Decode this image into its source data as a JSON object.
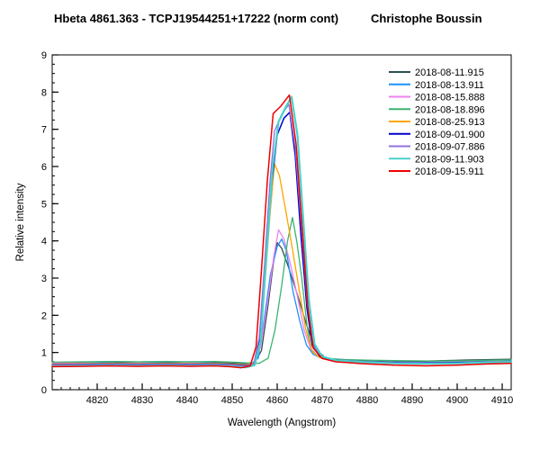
{
  "chart_data": {
    "type": "line",
    "title": "Hbeta 4861.363 - TCPJ19544251+17222 (norm cont)",
    "credit": "Christophe Boussin",
    "xlabel": "Wavelength (Angstrom)",
    "ylabel": "Relative intensity",
    "xlim": [
      4810,
      4912
    ],
    "ylim": [
      0,
      9
    ],
    "x_major_ticks": [
      4820,
      4830,
      4840,
      4850,
      4860,
      4870,
      4880,
      4890,
      4900,
      4910
    ],
    "x_minor_tick_step": 2,
    "y_major_ticks": [
      0,
      1,
      2,
      3,
      4,
      5,
      6,
      7,
      8,
      9
    ],
    "y_minor_tick_step": 0.25,
    "grid": false,
    "legend_position": "top-right",
    "axis_color": "#000000",
    "text_color": "#000000",
    "background_color": "#ffffff",
    "series": [
      {
        "name": "2018-08-11.915",
        "color": "#2F4F4F",
        "line_width": 1.3,
        "points": [
          [
            4810,
            0.73
          ],
          [
            4816,
            0.74
          ],
          [
            4821,
            0.75
          ],
          [
            4826,
            0.74
          ],
          [
            4831,
            0.75
          ],
          [
            4836,
            0.74
          ],
          [
            4841,
            0.75
          ],
          [
            4846,
            0.74
          ],
          [
            4850,
            0.72
          ],
          [
            4853,
            0.7
          ],
          [
            4855,
            0.73
          ],
          [
            4856.5,
            1.05
          ],
          [
            4858,
            2.3
          ],
          [
            4859.2,
            3.45
          ],
          [
            4860,
            3.95
          ],
          [
            4861,
            3.8
          ],
          [
            4862.5,
            3.3
          ],
          [
            4864.5,
            2.55
          ],
          [
            4866.5,
            1.75
          ],
          [
            4868.5,
            1.1
          ],
          [
            4870.5,
            0.88
          ],
          [
            4873,
            0.8
          ],
          [
            4878,
            0.78
          ],
          [
            4884,
            0.77
          ],
          [
            4890,
            0.76
          ],
          [
            4896,
            0.78
          ],
          [
            4903,
            0.8
          ],
          [
            4912,
            0.82
          ]
        ]
      },
      {
        "name": "2018-08-13.911",
        "color": "#1E90FF",
        "line_width": 1.3,
        "points": [
          [
            4810,
            0.7
          ],
          [
            4816,
            0.71
          ],
          [
            4821,
            0.72
          ],
          [
            4827,
            0.71
          ],
          [
            4833,
            0.72
          ],
          [
            4839,
            0.71
          ],
          [
            4844,
            0.72
          ],
          [
            4848,
            0.71
          ],
          [
            4851,
            0.68
          ],
          [
            4854,
            0.67
          ],
          [
            4855.8,
            0.85
          ],
          [
            4857,
            1.8
          ],
          [
            4858.5,
            3.1
          ],
          [
            4860,
            3.85
          ],
          [
            4861,
            4.05
          ],
          [
            4862,
            3.75
          ],
          [
            4863.5,
            2.65
          ],
          [
            4865,
            1.85
          ],
          [
            4866.5,
            1.2
          ],
          [
            4868,
            0.95
          ],
          [
            4870,
            0.84
          ],
          [
            4873,
            0.79
          ],
          [
            4879,
            0.76
          ],
          [
            4886,
            0.74
          ],
          [
            4893,
            0.73
          ],
          [
            4900,
            0.74
          ],
          [
            4906,
            0.76
          ],
          [
            4912,
            0.77
          ]
        ]
      },
      {
        "name": "2018-08-15.888",
        "color": "#EE82EE",
        "line_width": 1.3,
        "points": [
          [
            4810,
            0.72
          ],
          [
            4817,
            0.71
          ],
          [
            4823,
            0.7
          ],
          [
            4829,
            0.71
          ],
          [
            4835,
            0.7
          ],
          [
            4841,
            0.71
          ],
          [
            4846,
            0.7
          ],
          [
            4850,
            0.69
          ],
          [
            4853,
            0.67
          ],
          [
            4855,
            0.72
          ],
          [
            4856.3,
            1.15
          ],
          [
            4857.8,
            2.3
          ],
          [
            4859.2,
            3.55
          ],
          [
            4860.3,
            4.3
          ],
          [
            4861.5,
            4.05
          ],
          [
            4863,
            3.35
          ],
          [
            4864.5,
            2.5
          ],
          [
            4866,
            1.6
          ],
          [
            4867.5,
            1.08
          ],
          [
            4869.5,
            0.86
          ],
          [
            4872,
            0.79
          ],
          [
            4878,
            0.76
          ],
          [
            4885,
            0.74
          ],
          [
            4892,
            0.73
          ],
          [
            4899,
            0.74
          ],
          [
            4905,
            0.75
          ],
          [
            4912,
            0.76
          ]
        ]
      },
      {
        "name": "2018-08-18.896",
        "color": "#3CB371",
        "line_width": 1.3,
        "points": [
          [
            4810,
            0.74
          ],
          [
            4817,
            0.75
          ],
          [
            4823,
            0.76
          ],
          [
            4829,
            0.75
          ],
          [
            4835,
            0.76
          ],
          [
            4841,
            0.75
          ],
          [
            4846,
            0.76
          ],
          [
            4850,
            0.74
          ],
          [
            4853,
            0.72
          ],
          [
            4856,
            0.71
          ],
          [
            4858,
            0.85
          ],
          [
            4859.5,
            1.6
          ],
          [
            4861,
            2.8
          ],
          [
            4862.3,
            4.0
          ],
          [
            4863.4,
            4.63
          ],
          [
            4864.4,
            3.95
          ],
          [
            4865.5,
            2.95
          ],
          [
            4866.6,
            1.75
          ],
          [
            4867.6,
            1.08
          ],
          [
            4869,
            0.9
          ],
          [
            4871,
            0.84
          ],
          [
            4875,
            0.81
          ],
          [
            4881,
            0.79
          ],
          [
            4888,
            0.78
          ],
          [
            4895,
            0.77
          ],
          [
            4902,
            0.78
          ],
          [
            4907,
            0.79
          ],
          [
            4912,
            0.8
          ]
        ]
      },
      {
        "name": "2018-08-25.913",
        "color": "#FFA500",
        "line_width": 1.3,
        "points": [
          [
            4810,
            0.69
          ],
          [
            4817,
            0.7
          ],
          [
            4823,
            0.71
          ],
          [
            4829,
            0.7
          ],
          [
            4835,
            0.71
          ],
          [
            4841,
            0.7
          ],
          [
            4846,
            0.71
          ],
          [
            4850,
            0.69
          ],
          [
            4853,
            0.66
          ],
          [
            4855,
            0.72
          ],
          [
            4856.2,
            1.3
          ],
          [
            4857.3,
            2.9
          ],
          [
            4858.4,
            4.7
          ],
          [
            4859.4,
            6.08
          ],
          [
            4860.5,
            5.75
          ],
          [
            4862,
            4.75
          ],
          [
            4863.5,
            3.7
          ],
          [
            4865,
            2.6
          ],
          [
            4866.3,
            1.65
          ],
          [
            4867.8,
            1.02
          ],
          [
            4869.5,
            0.86
          ],
          [
            4872,
            0.79
          ],
          [
            4878,
            0.75
          ],
          [
            4885,
            0.72
          ],
          [
            4892,
            0.71
          ],
          [
            4899,
            0.72
          ],
          [
            4905,
            0.74
          ],
          [
            4912,
            0.76
          ]
        ]
      },
      {
        "name": "2018-09-01.900",
        "color": "#0000CD",
        "line_width": 1.5,
        "points": [
          [
            4810,
            0.67
          ],
          [
            4817,
            0.68
          ],
          [
            4823,
            0.69
          ],
          [
            4829,
            0.68
          ],
          [
            4835,
            0.69
          ],
          [
            4841,
            0.68
          ],
          [
            4846,
            0.69
          ],
          [
            4850,
            0.67
          ],
          [
            4853,
            0.64
          ],
          [
            4855,
            0.7
          ],
          [
            4856.2,
            1.35
          ],
          [
            4857.5,
            3.5
          ],
          [
            4858.8,
            5.55
          ],
          [
            4860,
            6.85
          ],
          [
            4861.5,
            7.3
          ],
          [
            4862.8,
            7.46
          ],
          [
            4864,
            6.3
          ],
          [
            4865.3,
            4.1
          ],
          [
            4866.6,
            2.2
          ],
          [
            4867.8,
            1.18
          ],
          [
            4869.5,
            0.89
          ],
          [
            4872,
            0.81
          ],
          [
            4878,
            0.76
          ],
          [
            4885,
            0.73
          ],
          [
            4892,
            0.72
          ],
          [
            4899,
            0.73
          ],
          [
            4905,
            0.74
          ],
          [
            4912,
            0.75
          ]
        ]
      },
      {
        "name": "2018-09-07.886",
        "color": "#9370DB",
        "line_width": 1.3,
        "points": [
          [
            4810,
            0.66
          ],
          [
            4817,
            0.67
          ],
          [
            4823,
            0.68
          ],
          [
            4829,
            0.67
          ],
          [
            4835,
            0.68
          ],
          [
            4841,
            0.67
          ],
          [
            4846,
            0.68
          ],
          [
            4850,
            0.66
          ],
          [
            4853,
            0.63
          ],
          [
            4854.8,
            0.7
          ],
          [
            4856,
            1.4
          ],
          [
            4857.2,
            3.4
          ],
          [
            4858.4,
            5.6
          ],
          [
            4859.4,
            6.95
          ],
          [
            4861,
            7.4
          ],
          [
            4862.6,
            7.67
          ],
          [
            4864,
            6.5
          ],
          [
            4865.4,
            4.35
          ],
          [
            4866.7,
            2.3
          ],
          [
            4868,
            1.18
          ],
          [
            4870,
            0.88
          ],
          [
            4873,
            0.8
          ],
          [
            4879,
            0.76
          ],
          [
            4886,
            0.72
          ],
          [
            4893,
            0.71
          ],
          [
            4900,
            0.72
          ],
          [
            4906,
            0.74
          ],
          [
            4912,
            0.75
          ]
        ]
      },
      {
        "name": "2018-09-11.903",
        "color": "#48D1CC",
        "line_width": 2.2,
        "points": [
          [
            4810,
            0.63
          ],
          [
            4817,
            0.64
          ],
          [
            4823,
            0.65
          ],
          [
            4829,
            0.64
          ],
          [
            4835,
            0.65
          ],
          [
            4841,
            0.64
          ],
          [
            4846,
            0.65
          ],
          [
            4850,
            0.63
          ],
          [
            4853,
            0.6
          ],
          [
            4855,
            0.66
          ],
          [
            4856.3,
            1.3
          ],
          [
            4857.6,
            3.6
          ],
          [
            4859,
            6.0
          ],
          [
            4860.3,
            7.2
          ],
          [
            4862,
            7.62
          ],
          [
            4863.2,
            7.87
          ],
          [
            4864.5,
            6.85
          ],
          [
            4865.8,
            4.55
          ],
          [
            4867,
            2.45
          ],
          [
            4868.3,
            1.22
          ],
          [
            4870,
            0.89
          ],
          [
            4873,
            0.79
          ],
          [
            4879,
            0.74
          ],
          [
            4886,
            0.71
          ],
          [
            4893,
            0.7
          ],
          [
            4900,
            0.71
          ],
          [
            4906,
            0.73
          ],
          [
            4912,
            0.74
          ]
        ]
      },
      {
        "name": "2018-09-15.911",
        "color": "#EE0000",
        "line_width": 1.5,
        "points": [
          [
            4810,
            0.62
          ],
          [
            4817,
            0.63
          ],
          [
            4823,
            0.64
          ],
          [
            4829,
            0.63
          ],
          [
            4835,
            0.64
          ],
          [
            4841,
            0.63
          ],
          [
            4846,
            0.64
          ],
          [
            4849.5,
            0.62
          ],
          [
            4852,
            0.59
          ],
          [
            4854,
            0.64
          ],
          [
            4855.3,
            1.15
          ],
          [
            4856.5,
            3.2
          ],
          [
            4857.8,
            5.6
          ],
          [
            4859.1,
            7.42
          ],
          [
            4860.8,
            7.62
          ],
          [
            4862.7,
            7.92
          ],
          [
            4864.2,
            6.6
          ],
          [
            4865.6,
            4.25
          ],
          [
            4866.8,
            2.25
          ],
          [
            4868,
            1.12
          ],
          [
            4870,
            0.84
          ],
          [
            4873,
            0.75
          ],
          [
            4879,
            0.7
          ],
          [
            4886,
            0.66
          ],
          [
            4893,
            0.64
          ],
          [
            4900,
            0.66
          ],
          [
            4906,
            0.69
          ],
          [
            4912,
            0.71
          ]
        ]
      }
    ]
  }
}
